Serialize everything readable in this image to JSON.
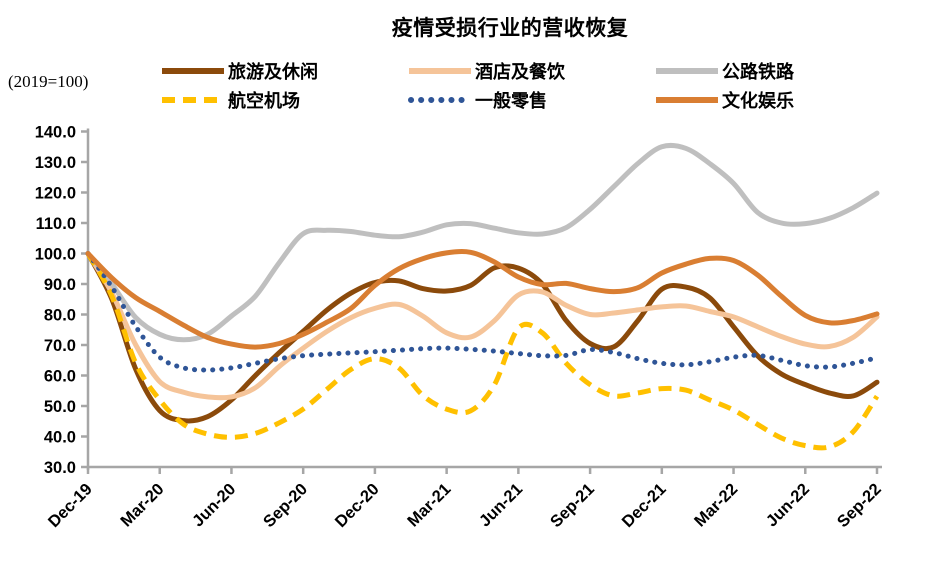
{
  "title": "疫情受损行业的营收恢复",
  "unit_label": "(2019=100)",
  "colors": {
    "background": "#FFFFFF",
    "axis": "#A6A6A6",
    "text": "#000000"
  },
  "chart_data": {
    "type": "line",
    "title": "疫情受损行业的营收恢复",
    "unit": "(2019=100)",
    "grid": false,
    "legend_position": "top",
    "ylim": [
      30,
      140
    ],
    "ytick_step": 10,
    "axis_color": "#A6A6A6",
    "y_tick_labels": [
      "140.0",
      "130.0",
      "120.0",
      "110.0",
      "100.0",
      "90.0",
      "80.0",
      "70.0",
      "60.0",
      "50.0",
      "40.0",
      "30.0"
    ],
    "x_tick_labels": [
      "Dec-19",
      "Mar-20",
      "Jun-20",
      "Sep-20",
      "Dec-20",
      "Mar-21",
      "Jun-21",
      "Sep-21",
      "Dec-21",
      "Mar-22",
      "Jun-22",
      "Sep-22"
    ],
    "categories": [
      "Dec-19",
      "Jan-20",
      "Feb-20",
      "Mar-20",
      "Apr-20",
      "May-20",
      "Jun-20",
      "Jul-20",
      "Aug-20",
      "Sep-20",
      "Oct-20",
      "Nov-20",
      "Dec-20",
      "Jan-21",
      "Feb-21",
      "Mar-21",
      "Apr-21",
      "May-21",
      "Jun-21",
      "Jul-21",
      "Aug-21",
      "Sep-21",
      "Oct-21",
      "Nov-21",
      "Dec-21",
      "Jan-22",
      "Feb-22",
      "Mar-22",
      "Apr-22",
      "May-22",
      "Jun-22",
      "Jul-22",
      "Aug-22",
      "Sep-22"
    ],
    "series": [
      {
        "key": "tourism-leisure",
        "name": "旅游及休闲",
        "color": "#8B4A0B",
        "line_style": "solid",
        "values": [
          100,
          85,
          62,
          48.5,
          45.2,
          46.5,
          52,
          60,
          67.5,
          74.5,
          81.5,
          87,
          90.5,
          91,
          88.5,
          87.7,
          89.5,
          95.3,
          95.2,
          90,
          78,
          70.5,
          69.4,
          78,
          88.3,
          89,
          85.5,
          76,
          66.5,
          60.5,
          57,
          54.3,
          53.3,
          57.8
        ]
      },
      {
        "key": "hotels-catering",
        "name": "酒店及餐饮",
        "color": "#F5C499",
        "line_style": "solid",
        "values": [
          100,
          87,
          70,
          58,
          54.5,
          53,
          53,
          56,
          63,
          69,
          74.5,
          79,
          82,
          83.3,
          79.5,
          74,
          72.6,
          78,
          86.4,
          87.4,
          83,
          80,
          80.5,
          81.5,
          82.5,
          82.8,
          81,
          79.2,
          76,
          72.8,
          70.3,
          69.5,
          72.5,
          79.2
        ]
      },
      {
        "key": "roads-railways",
        "name": "公路铁路",
        "color": "#BFBFBF",
        "line_style": "solid",
        "values": [
          100,
          90,
          79,
          73.5,
          71.7,
          73.5,
          79.5,
          86,
          97,
          106.5,
          107.6,
          107.2,
          106,
          105.5,
          107,
          109.4,
          109.8,
          108.3,
          106.8,
          106.4,
          108.5,
          114.5,
          122,
          129.5,
          135,
          134.5,
          129.5,
          123,
          113.5,
          110,
          109.8,
          111.5,
          115,
          119.8
        ]
      },
      {
        "key": "aviation-airports",
        "name": "航空机场",
        "color": "#FFC000",
        "line_style": "dashed",
        "values": [
          100,
          86,
          64,
          52,
          44,
          40.8,
          39.7,
          41,
          44.5,
          49,
          55.5,
          62,
          65.5,
          62.5,
          53.5,
          49,
          48.4,
          57,
          75.5,
          74,
          64,
          57,
          53.3,
          54.3,
          55.7,
          55.2,
          52,
          48.7,
          44,
          39.5,
          37,
          36.6,
          41.5,
          53.2
        ]
      },
      {
        "key": "general-retail",
        "name": "一般零售",
        "color": "#2F5597",
        "line_style": "dotted",
        "values": [
          100,
          89,
          76,
          66,
          62.5,
          61.8,
          62.5,
          64,
          65.5,
          66.5,
          67,
          67.4,
          67.8,
          68.3,
          68.8,
          69,
          68.6,
          68,
          67.2,
          66.5,
          66.6,
          68.5,
          67.5,
          65.5,
          64,
          63.5,
          64.5,
          66,
          66.6,
          65,
          63.2,
          62.8,
          64,
          65.8
        ]
      },
      {
        "key": "culture-entertainment",
        "name": "文化娱乐",
        "color": "#D97E32",
        "line_style": "solid",
        "values": [
          100,
          92,
          85.5,
          81,
          76.5,
          72.5,
          70.3,
          69.3,
          70.5,
          73.5,
          77.5,
          82,
          89.5,
          95,
          98.3,
          100.2,
          100.4,
          97.2,
          92.3,
          89.8,
          90.2,
          88.5,
          87.5,
          88.8,
          93.6,
          96.5,
          98.4,
          97.7,
          93,
          86,
          79.7,
          77.3,
          78,
          80.2
        ]
      }
    ]
  }
}
